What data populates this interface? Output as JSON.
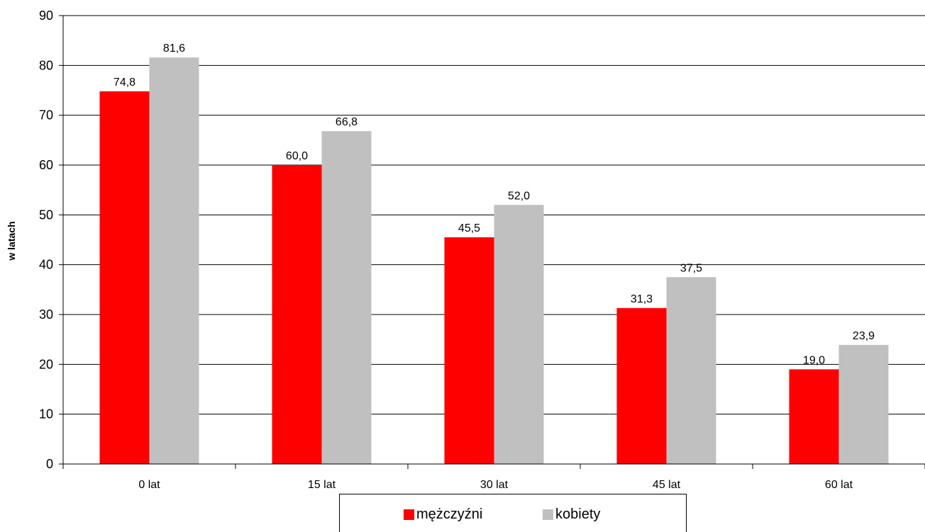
{
  "chart_data": {
    "type": "bar",
    "categories": [
      "0 lat",
      "15 lat",
      "30 lat",
      "45 lat",
      "60 lat"
    ],
    "series": [
      {
        "name": "mężczyźni",
        "color": "#ff0000",
        "values": [
          74.8,
          60.0,
          45.5,
          31.3,
          19.0
        ],
        "labels": [
          "74,8",
          "60,0",
          "45,5",
          "31,3",
          "19,0"
        ]
      },
      {
        "name": "kobiety",
        "color": "#c0c0c0",
        "values": [
          81.6,
          66.8,
          52.0,
          37.5,
          23.9
        ],
        "labels": [
          "81,6",
          "66,8",
          "52,0",
          "37,5",
          "23,9"
        ]
      }
    ],
    "ylabel": "w latach",
    "ylim": [
      0,
      90
    ],
    "yticks": [
      "0",
      "10",
      "20",
      "30",
      "40",
      "50",
      "60",
      "70",
      "80",
      "90"
    ],
    "grid": true,
    "legend_position": "bottom"
  }
}
